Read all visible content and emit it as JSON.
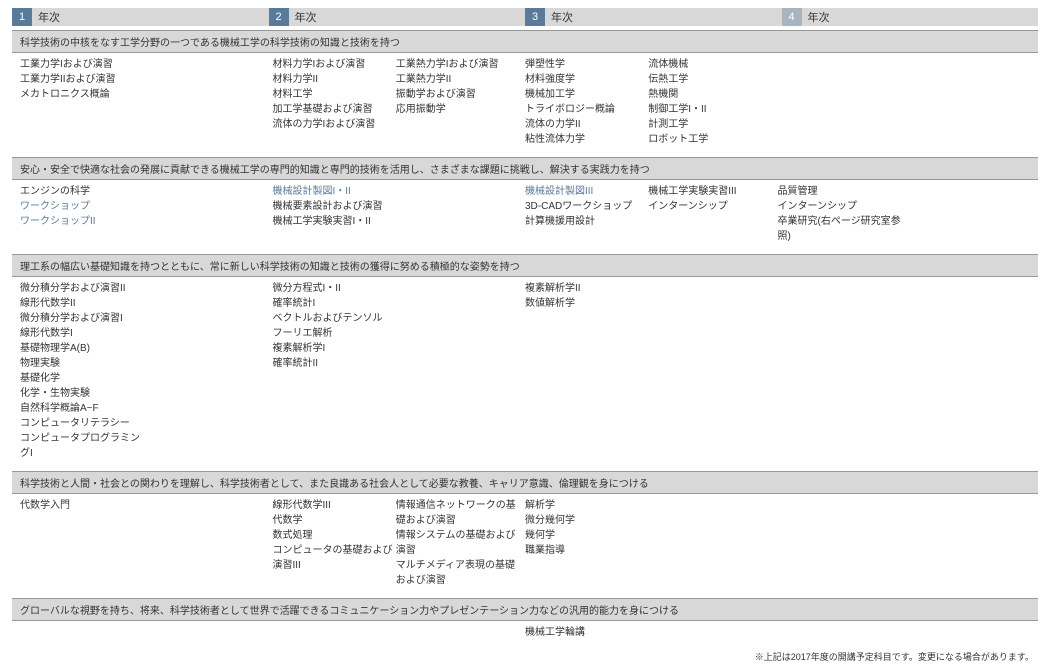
{
  "colors": {
    "year_num_bg": "#5a7a9a",
    "year_num_bg_4": "#a8b4c0",
    "header_bg": "#d8d8d8",
    "link_color": "#5b7a9a",
    "text_color": "#333333",
    "border_color": "#999999"
  },
  "years": [
    {
      "num": "1",
      "label": "年次"
    },
    {
      "num": "2",
      "label": "年次"
    },
    {
      "num": "3",
      "label": "年次"
    },
    {
      "num": "4",
      "label": "年次"
    }
  ],
  "categories": [
    {
      "title": "科学技術の中核をなす工学分野の一つである機械工学の科学技術の知識と技術を持つ",
      "rows": [
        {
          "y1": {
            "a": [
              "工業力学Iおよび演習",
              "工業力学IIおよび演習",
              "メカトロニクス概論"
            ],
            "b": []
          },
          "y2": {
            "a": [
              "材料力学Iおよび演習",
              "材料力学II",
              "材料工学",
              "加工学基礎および演習",
              "流体の力学Iおよび演習"
            ],
            "b": [
              "工業熱力学Iおよび演習",
              "工業熱力学II",
              "振動学および演習",
              "応用振動学"
            ]
          },
          "y3": {
            "a": [
              "弾塑性学",
              "材料強度学",
              "機械加工学",
              "トライボロジー概論",
              "流体の力学II",
              "粘性流体力学"
            ],
            "b": [
              "流体機械",
              "伝熱工学",
              "熱機関",
              "制御工学I・II",
              "計測工学",
              "ロボット工学"
            ]
          },
          "y4": {
            "a": [],
            "b": []
          }
        }
      ]
    },
    {
      "title": "安心・安全で快適な社会の発展に貢献できる機械工学の専門的知識と専門的技術を活用し、さまざまな課題に挑戦し、解決する実践力を持つ",
      "rows": [
        {
          "y1": {
            "a": [
              "エンジンの科学"
            ],
            "b": [],
            "links": [
              "ワークショップ",
              "ワークショップII"
            ]
          },
          "y2": {
            "a": [
              "機械要素設計および演習",
              "機械工学実験実習I・II"
            ],
            "b": [],
            "links_top": [
              "機械設計製図I・II"
            ]
          },
          "y3": {
            "a": [
              "3D-CADワークショップ",
              "計算機援用設計"
            ],
            "b": [
              "機械工学実験実習III",
              "インターンシップ"
            ],
            "links_top_a": [
              "機械設計製図III"
            ]
          },
          "y4": {
            "a": [
              "品質管理",
              "インターンシップ",
              "卒業研究(右ページ研究室参照)"
            ],
            "b": []
          }
        }
      ]
    },
    {
      "title": "理工系の幅広い基礎知識を持つとともに、常に新しい科学技術の知識と技術の獲得に努める積極的な姿勢を持つ",
      "rows": [
        {
          "y1": {
            "a": [
              "微分積分学および演習II",
              "線形代数学II",
              "微分積分学および演習I",
              "線形代数学I",
              "基礎物理学A(B)",
              "物理実験",
              "基礎化学",
              "化学・生物実験",
              "自然科学概論A~F",
              "コンピュータリテラシー",
              "コンピュータプログラミングI"
            ],
            "b": []
          },
          "y2": {
            "a": [
              "微分方程式I・II",
              "確率統計I",
              "ベクトルおよびテンソル",
              "フーリエ解析",
              "複素解析学I",
              "確率統計II"
            ],
            "b": []
          },
          "y3": {
            "a": [
              "複素解析学II",
              "数値解析学"
            ],
            "b": []
          },
          "y4": {
            "a": [],
            "b": []
          }
        }
      ]
    },
    {
      "title": "科学技術と人間・社会との関わりを理解し、科学技術者として、また良識ある社会人として必要な教養、キャリア意識、倫理観を身につける",
      "rows": [
        {
          "y1": {
            "a": [
              "代数学入門"
            ],
            "b": []
          },
          "y2": {
            "a": [
              "線形代数学III",
              "代数学",
              "数式処理",
              "コンピュータの基礎および演習III"
            ],
            "b": [
              "情報通信ネットワークの基礎および演習",
              "情報システムの基礎および演習",
              "マルチメディア表現の基礎および演習"
            ]
          },
          "y3": {
            "a": [
              "解析学",
              "微分幾何学",
              "幾何学",
              "職業指導"
            ],
            "b": []
          },
          "y4": {
            "a": [],
            "b": []
          }
        }
      ]
    },
    {
      "title": "グローバルな視野を持ち、将来、科学技術者として世界で活躍できるコミュニケーション力やプレゼンテーション力などの汎用的能力を身につける",
      "rows": [
        {
          "y1": {
            "a": [],
            "b": []
          },
          "y2": {
            "a": [],
            "b": []
          },
          "y3": {
            "a": [
              "機械工学輪講"
            ],
            "b": []
          },
          "y4": {
            "a": [],
            "b": []
          }
        }
      ]
    }
  ],
  "footnote": "※上記は2017年度の開講予定科目です。変更になる場合があります。"
}
